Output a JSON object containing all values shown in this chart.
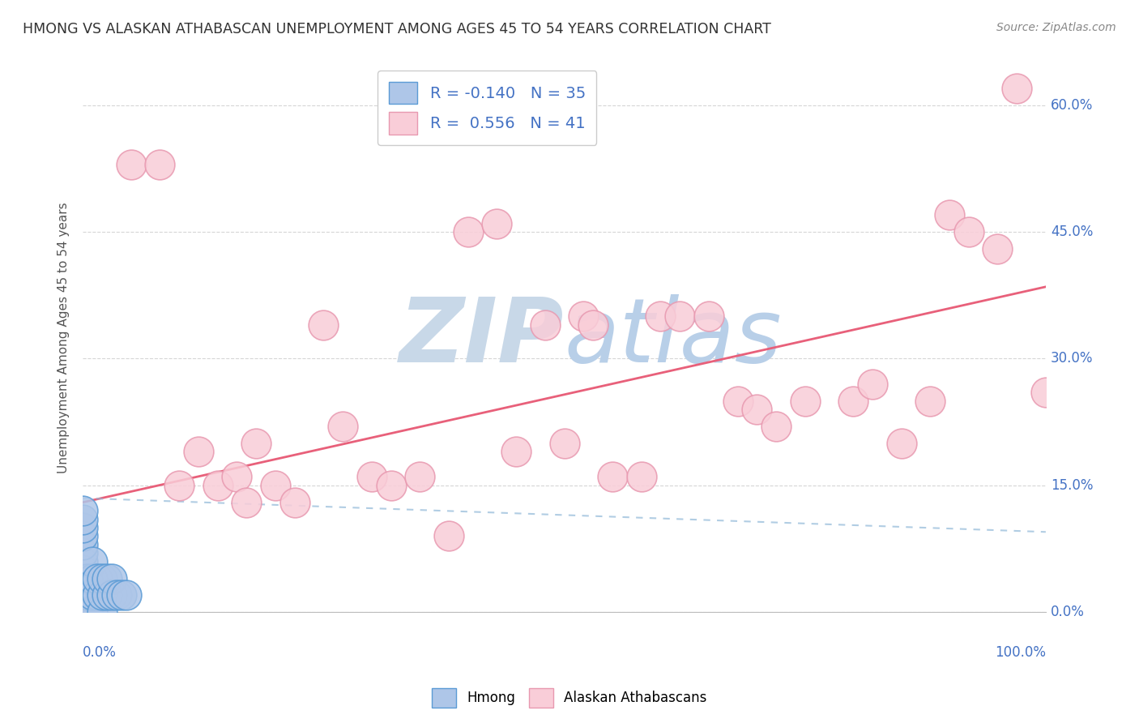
{
  "title": "HMONG VS ALASKAN ATHABASCAN UNEMPLOYMENT AMONG AGES 45 TO 54 YEARS CORRELATION CHART",
  "source": "Source: ZipAtlas.com",
  "ylabel": "Unemployment Among Ages 45 to 54 years",
  "ytick_labels": [
    "0.0%",
    "15.0%",
    "30.0%",
    "45.0%",
    "60.0%"
  ],
  "ytick_values": [
    0.0,
    0.15,
    0.3,
    0.45,
    0.6
  ],
  "xlim": [
    0.0,
    1.0
  ],
  "ylim": [
    0.0,
    0.65
  ],
  "hmong_color": "#aec6e8",
  "hmong_edge_color": "#5b9bd5",
  "athabascan_color": "#f9cdd8",
  "athabascan_edge_color": "#e899b0",
  "athabascan_line_color": "#e8607a",
  "hmong_line_color": "#90b8d8",
  "R_hmong": -0.14,
  "N_hmong": 35,
  "R_athabascan": 0.556,
  "N_athabascan": 41,
  "legend_label_hmong": "Hmong",
  "legend_label_athabascan": "Alaskan Athabascans",
  "background_color": "#ffffff",
  "grid_color": "#bbbbbb",
  "watermark_color": "#c8d8e8",
  "title_color": "#333333",
  "axis_label_color": "#4472c4",
  "hmong_scatter_x": [
    0.0,
    0.0,
    0.0,
    0.0,
    0.0,
    0.0,
    0.0,
    0.0,
    0.0,
    0.0,
    0.0,
    0.0,
    0.0,
    0.0,
    0.0,
    0.0,
    0.005,
    0.005,
    0.005,
    0.01,
    0.01,
    0.01,
    0.01,
    0.015,
    0.015,
    0.02,
    0.02,
    0.02,
    0.025,
    0.025,
    0.03,
    0.03,
    0.035,
    0.04,
    0.045
  ],
  "hmong_scatter_y": [
    0.0,
    0.0,
    0.0,
    0.0,
    0.0,
    0.02,
    0.03,
    0.04,
    0.05,
    0.06,
    0.07,
    0.08,
    0.09,
    0.1,
    0.11,
    0.12,
    0.0,
    0.02,
    0.04,
    0.0,
    0.02,
    0.04,
    0.06,
    0.02,
    0.04,
    0.0,
    0.02,
    0.04,
    0.02,
    0.04,
    0.02,
    0.04,
    0.02,
    0.02,
    0.02
  ],
  "athabascan_scatter_x": [
    0.05,
    0.08,
    0.1,
    0.12,
    0.14,
    0.16,
    0.17,
    0.18,
    0.2,
    0.22,
    0.25,
    0.27,
    0.3,
    0.32,
    0.35,
    0.38,
    0.4,
    0.43,
    0.45,
    0.48,
    0.5,
    0.52,
    0.53,
    0.55,
    0.6,
    0.62,
    0.65,
    0.68,
    0.7,
    0.72,
    0.75,
    0.8,
    0.82,
    0.85,
    0.88,
    0.9,
    0.92,
    0.95,
    0.97,
    1.0,
    0.58
  ],
  "athabascan_scatter_y": [
    0.53,
    0.53,
    0.15,
    0.19,
    0.15,
    0.16,
    0.13,
    0.2,
    0.15,
    0.13,
    0.34,
    0.22,
    0.16,
    0.15,
    0.16,
    0.09,
    0.45,
    0.46,
    0.19,
    0.34,
    0.2,
    0.35,
    0.34,
    0.16,
    0.35,
    0.35,
    0.35,
    0.25,
    0.24,
    0.22,
    0.25,
    0.25,
    0.27,
    0.2,
    0.25,
    0.47,
    0.45,
    0.43,
    0.62,
    0.26,
    0.16
  ],
  "reg_line_ath_x0": 0.0,
  "reg_line_ath_y0": 0.13,
  "reg_line_ath_x1": 1.0,
  "reg_line_ath_y1": 0.385,
  "reg_line_hmong_x0": 0.0,
  "reg_line_hmong_y0": 0.135,
  "reg_line_hmong_x1": 1.0,
  "reg_line_hmong_y1": 0.095
}
